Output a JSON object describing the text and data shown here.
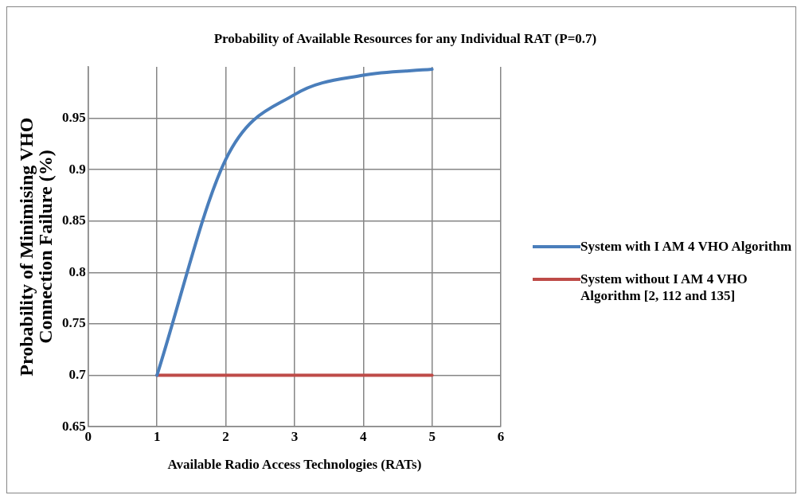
{
  "chart_data": {
    "type": "line",
    "title": "Probability of Available Resources for any Individual RAT  (P=0.7)",
    "xlabel": "Available Radio Access Technologies (RATs)",
    "ylabel": "Probability of Minimising VHO Connection Failure (%)",
    "x": [
      1,
      2,
      3,
      4,
      5
    ],
    "series": [
      {
        "name": "System with I AM 4 VHO Algorithm",
        "color": "#4a7ebb",
        "values": [
          0.7,
          0.91,
          0.973,
          0.9919,
          0.9976
        ]
      },
      {
        "name": "System without I AM 4 VHO Algorithm  [2, 112 and 135]",
        "color": "#be4b48",
        "values": [
          0.7,
          0.7,
          0.7,
          0.7,
          0.7
        ]
      }
    ],
    "xlim": [
      0,
      6
    ],
    "xticks": [
      0,
      1,
      2,
      3,
      4,
      5,
      6
    ],
    "ylim": [
      0.65,
      1
    ],
    "yticks": [
      0.65,
      0.7,
      0.75,
      0.8,
      0.85,
      0.9,
      0.95
    ],
    "grid": true,
    "legend": "right",
    "marker": "none",
    "line_style": "solid"
  }
}
